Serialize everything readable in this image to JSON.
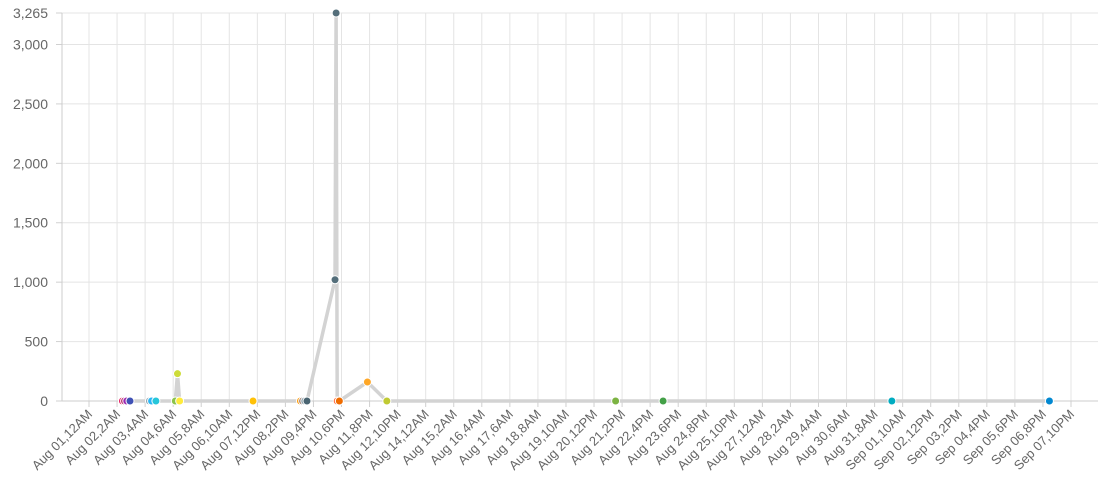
{
  "chart_data": {
    "type": "line",
    "y_ticks": [
      0,
      500,
      1000,
      1500,
      2000,
      2500,
      3000,
      3265
    ],
    "y_tick_labels": [
      "0",
      "500",
      "1,000",
      "1,500",
      "2,000",
      "2,500",
      "3,000",
      "3,265"
    ],
    "ylim": [
      0,
      3265
    ],
    "x_tick_labels": [
      "Aug 01,12AM",
      "Aug 02,2AM",
      "Aug 03,4AM",
      "Aug 04,6AM",
      "Aug 05,8AM",
      "Aug 06,10AM",
      "Aug 07,12PM",
      "Aug 08,2PM",
      "Aug 09,4PM",
      "Aug 10,6PM",
      "Aug 11,8PM",
      "Aug 12,10PM",
      "Aug 14,12AM",
      "Aug 15,2AM",
      "Aug 16,4AM",
      "Aug 17,6AM",
      "Aug 18,8AM",
      "Aug 19,10AM",
      "Aug 20,12PM",
      "Aug 21,2PM",
      "Aug 22,4PM",
      "Aug 23,6PM",
      "Aug 24,8PM",
      "Aug 25,10PM",
      "Aug 27,12AM",
      "Aug 28,2AM",
      "Aug 29,4AM",
      "Aug 30,6AM",
      "Aug 31,8AM",
      "Sep 01,10AM",
      "Sep 02,12PM",
      "Sep 03,2PM",
      "Sep 04,4PM",
      "Sep 05,6PM",
      "Sep 06,8PM",
      "Sep 07,10PM"
    ],
    "grid": true,
    "line_color": "#d3d3d3",
    "points": [
      {
        "x": "2023-08-02T07:00",
        "y": 0,
        "color": "#e91e63"
      },
      {
        "x": "2023-08-02T09:00",
        "y": 0,
        "color": "#ad1457"
      },
      {
        "x": "2023-08-02T11:00",
        "y": 0,
        "color": "#9c27b0"
      },
      {
        "x": "2023-08-02T14:00",
        "y": 0,
        "color": "#3f51b5"
      },
      {
        "x": "2023-08-03T08:00",
        "y": 0,
        "color": "#90a4ae"
      },
      {
        "x": "2023-08-03T10:00",
        "y": 0,
        "color": "#29b6f6"
      },
      {
        "x": "2023-08-03T14:00",
        "y": 0,
        "color": "#26c6da"
      },
      {
        "x": "2023-08-04T08:00",
        "y": 0,
        "color": "#8bc34a"
      },
      {
        "x": "2023-08-04T10:00",
        "y": 230,
        "color": "#cddc39"
      },
      {
        "x": "2023-08-04T12:00",
        "y": 0,
        "color": "#ffeb3b"
      },
      {
        "x": "2023-08-07T08:00",
        "y": 0,
        "color": "#ffc107"
      },
      {
        "x": "2023-08-09T04:00",
        "y": 0,
        "color": "#ff9800"
      },
      {
        "x": "2023-08-09T06:00",
        "y": 0,
        "color": "#8d6e63"
      },
      {
        "x": "2023-08-09T08:00",
        "y": 0,
        "color": "#78909c"
      },
      {
        "x": "2023-08-09T10:00",
        "y": 0,
        "color": "#4a6572"
      },
      {
        "x": "2023-08-10T12:00",
        "y": 1020,
        "color": "#546e7a"
      },
      {
        "x": "2023-08-10T13:00",
        "y": 3265,
        "color": "#546e7a"
      },
      {
        "x": "2023-08-10T14:00",
        "y": 0,
        "color": "#ff7043"
      },
      {
        "x": "2023-08-10T16:00",
        "y": 0,
        "color": "#ef6c00"
      },
      {
        "x": "2023-08-11T18:00",
        "y": 160,
        "color": "#ffa726"
      },
      {
        "x": "2023-08-12T12:00",
        "y": 0,
        "color": "#c0ca33"
      },
      {
        "x": "2023-08-21T08:00",
        "y": 0,
        "color": "#7cb342"
      },
      {
        "x": "2023-08-23T04:00",
        "y": 0,
        "color": "#43a047"
      },
      {
        "x": "2023-09-01T00:00",
        "y": 0,
        "color": "#00acc1"
      },
      {
        "x": "2023-09-07T02:00",
        "y": 0,
        "color": "#0288d1"
      }
    ]
  }
}
